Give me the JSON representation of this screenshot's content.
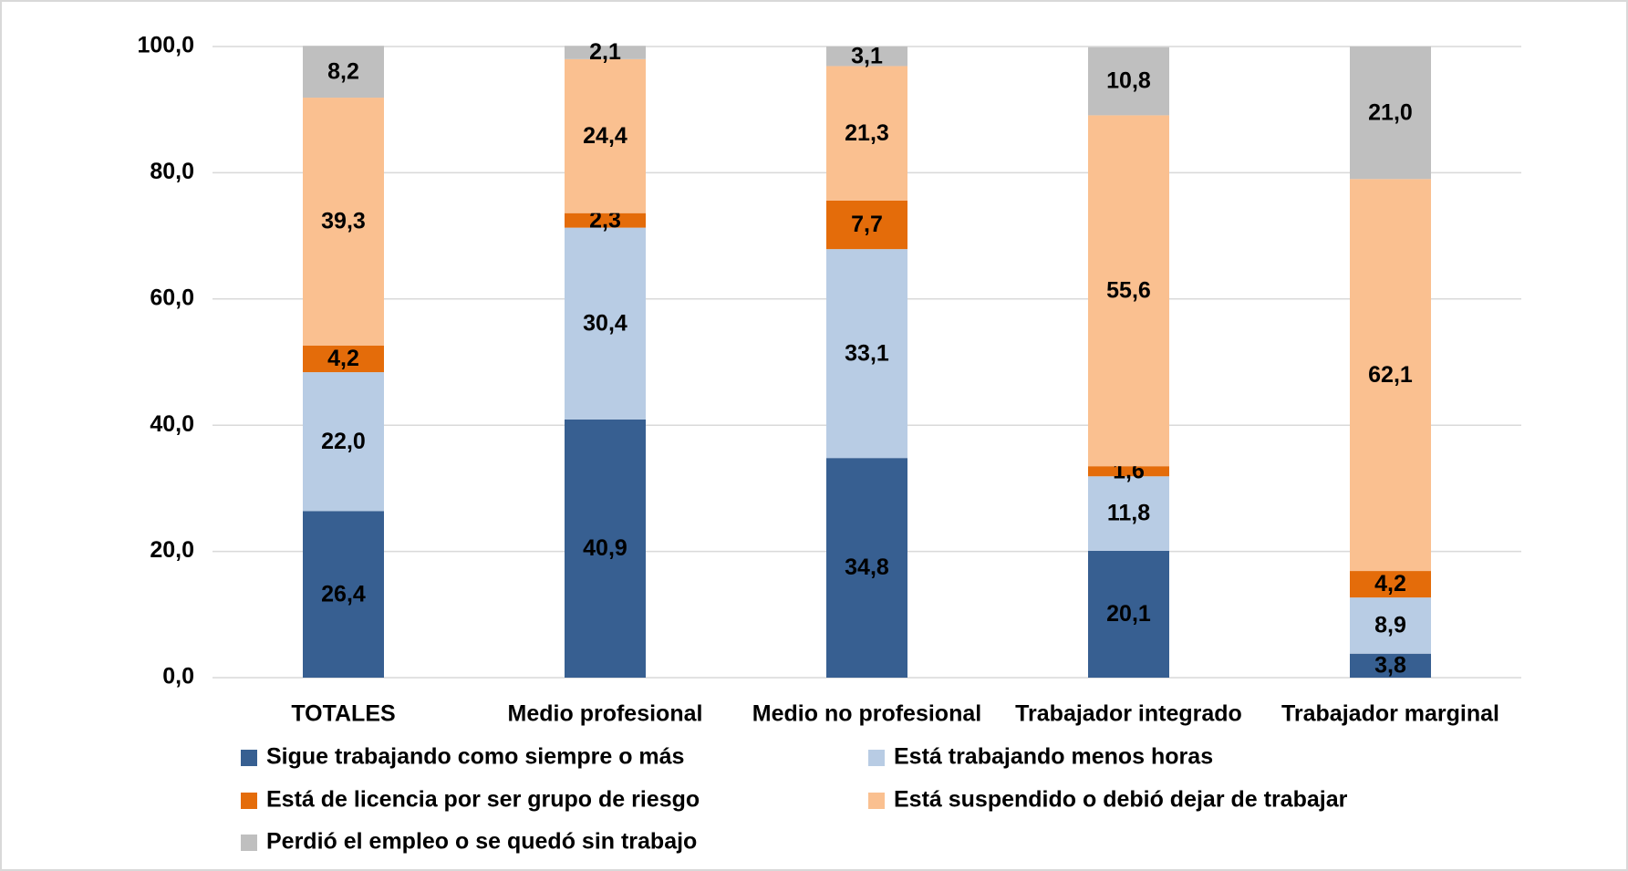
{
  "chart_data": {
    "type": "stacked_bar",
    "categories": [
      "TOTALES",
      "Medio profesional",
      "Medio no profesional",
      "Trabajador integrado",
      "Trabajador marginal"
    ],
    "series": [
      {
        "name": "Sigue trabajando como siempre o más",
        "color": "#375f91",
        "values": [
          26.4,
          40.9,
          34.8,
          20.1,
          3.8
        ],
        "value_labels": [
          "26,4",
          "40,9",
          "34,8",
          "20,1",
          "3,8"
        ]
      },
      {
        "name": "Está trabajando menos horas",
        "color": "#b8cce4",
        "values": [
          22.0,
          30.4,
          33.1,
          11.8,
          8.9
        ],
        "value_labels": [
          "22,0",
          "30,4",
          "33,1",
          "11,8",
          "8,9"
        ]
      },
      {
        "name": "Está de licencia por ser grupo de riesgo",
        "color": "#e46c0a",
        "values": [
          4.2,
          2.3,
          7.7,
          1.6,
          4.2
        ],
        "value_labels": [
          "4,2",
          "2,3",
          "7,7",
          "1,6",
          "4,2"
        ]
      },
      {
        "name": "Está suspendido o debió dejar de trabajar",
        "color": "#fac090",
        "values": [
          39.3,
          24.4,
          21.3,
          55.6,
          62.1
        ],
        "value_labels": [
          "39,3",
          "24,4",
          "21,3",
          "55,6",
          "62,1"
        ]
      },
      {
        "name": "Perdió el empleo o se quedó sin trabajo",
        "color": "#bfbfbf",
        "values": [
          8.2,
          2.1,
          3.1,
          10.8,
          21.0
        ],
        "value_labels": [
          "8,2",
          "2,1",
          "3,1",
          "10,8",
          "21,0"
        ]
      }
    ],
    "ylim": [
      0,
      100
    ],
    "yticks": [
      {
        "value": 0,
        "label": "0,0"
      },
      {
        "value": 20,
        "label": "20,0"
      },
      {
        "value": 40,
        "label": "40,0"
      },
      {
        "value": 60,
        "label": "60,0"
      },
      {
        "value": 80,
        "label": "80,0"
      },
      {
        "value": 100,
        "label": "100,0"
      }
    ],
    "grid": true,
    "legend": "bottom"
  }
}
